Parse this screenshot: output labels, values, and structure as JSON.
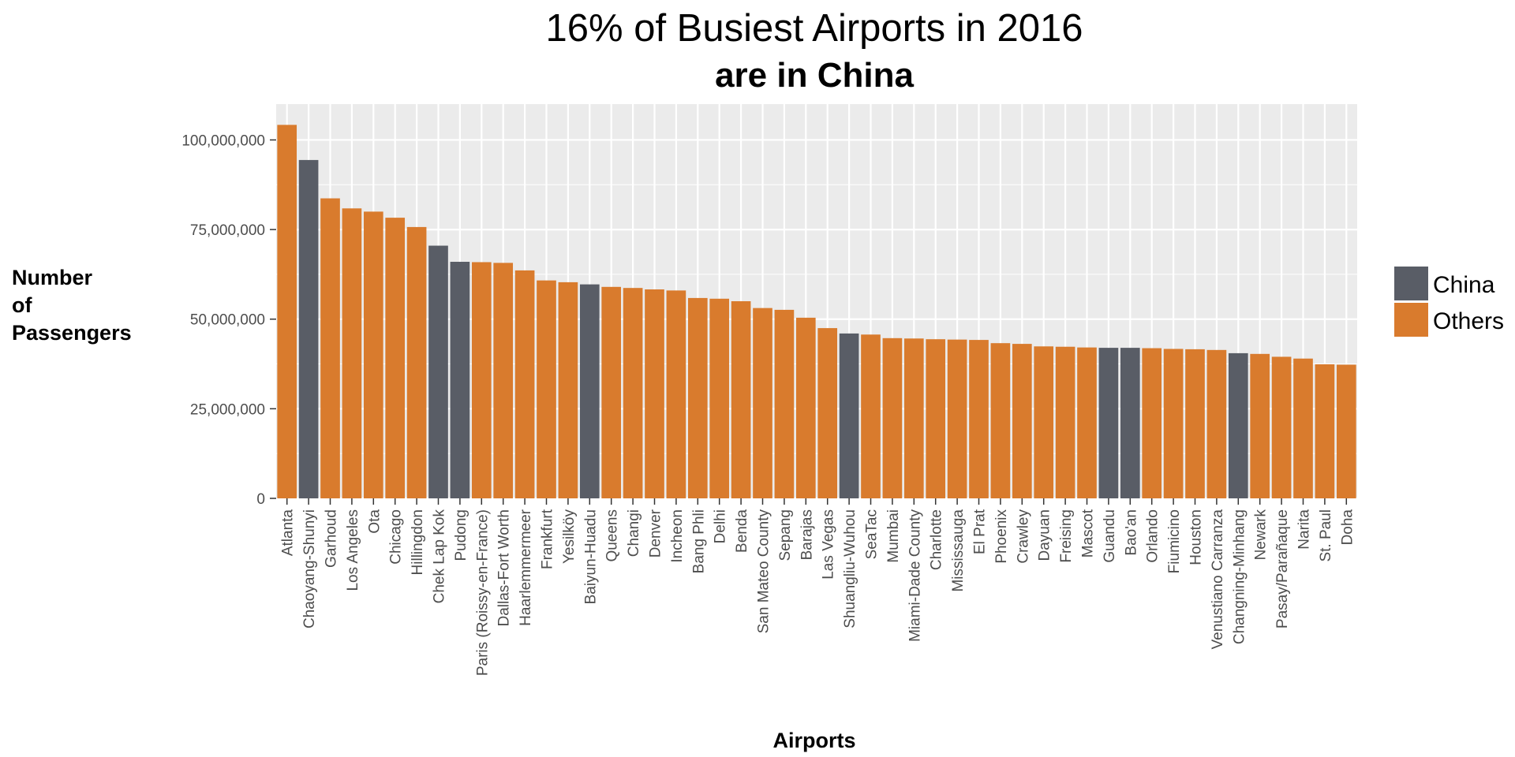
{
  "chart_data": {
    "type": "bar",
    "title": "16% of Busiest Airports in 2016",
    "subtitle": "are in China",
    "xlabel": "Airports",
    "ylabel_lines": [
      "Number",
      "of",
      "Passengers"
    ],
    "ylim": [
      0,
      110000000
    ],
    "yticks": [
      0,
      25000000,
      50000000,
      75000000,
      100000000
    ],
    "ytick_labels": [
      "0",
      "25,000,000",
      "50,000,000",
      "75,000,000",
      "100,000,000"
    ],
    "grid": true,
    "legend_position": "right",
    "legend": [
      {
        "name": "China",
        "color": "#595d66"
      },
      {
        "name": "Others",
        "color": "#d97b2d"
      }
    ],
    "categories": [
      "Atlanta",
      "Chaoyang-Shunyi",
      "Garhoud",
      "Los Angeles",
      "Ota",
      "Chicago",
      "Hillingdon",
      "Chek Lap Kok",
      "Pudong",
      "Paris (Roissy-en-France)",
      "Dallas-Fort Worth",
      "Haarlemmermeer",
      "Frankfurt",
      "Yesilköy",
      "Baiyun-Huadu",
      "Queens",
      "Changi",
      "Denver",
      "Incheon",
      "Bang Phli",
      "Delhi",
      "Benda",
      "San Mateo County",
      "Sepang",
      "Barajas",
      "Las Vegas",
      "Shuangliu-Wuhou",
      "SeaTac",
      "Mumbai",
      "Miami-Dade County",
      "Charlotte",
      "Mississauga",
      "El Prat",
      "Phoenix",
      "Crawley",
      "Dayuan",
      "Freising",
      "Mascot",
      "Guandu",
      "Bao'an",
      "Orlando",
      "Fiumicino",
      "Houston",
      "Venustiano Carranza",
      "Changning-Minhang",
      "Newark",
      "Pasay/Parañaque",
      "Narita",
      "St. Paul",
      "Doha"
    ],
    "values": [
      104200000,
      94400000,
      83700000,
      80900000,
      80000000,
      78300000,
      75700000,
      70500000,
      66000000,
      65900000,
      65700000,
      63600000,
      60800000,
      60300000,
      59700000,
      59000000,
      58700000,
      58300000,
      58000000,
      55900000,
      55700000,
      55000000,
      53100000,
      52600000,
      50400000,
      47500000,
      46000000,
      45700000,
      44700000,
      44600000,
      44400000,
      44300000,
      44200000,
      43300000,
      43100000,
      42400000,
      42300000,
      42100000,
      42000000,
      42000000,
      41900000,
      41700000,
      41600000,
      41400000,
      40500000,
      40300000,
      39500000,
      39000000,
      37400000,
      37300000
    ],
    "groups": [
      "Others",
      "China",
      "Others",
      "Others",
      "Others",
      "Others",
      "Others",
      "China",
      "China",
      "Others",
      "Others",
      "Others",
      "Others",
      "Others",
      "China",
      "Others",
      "Others",
      "Others",
      "Others",
      "Others",
      "Others",
      "Others",
      "Others",
      "Others",
      "Others",
      "Others",
      "China",
      "Others",
      "Others",
      "Others",
      "Others",
      "Others",
      "Others",
      "Others",
      "Others",
      "Others",
      "Others",
      "Others",
      "China",
      "China",
      "Others",
      "Others",
      "Others",
      "Others",
      "China",
      "Others",
      "Others",
      "Others",
      "Others",
      "Others"
    ],
    "colors": {
      "China": "#595d66",
      "Others": "#d97b2d",
      "panel_bg": "#ebebeb",
      "grid": "#ffffff"
    }
  }
}
